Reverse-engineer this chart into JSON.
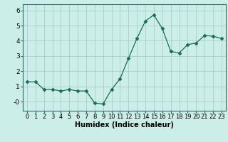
{
  "x": [
    0,
    1,
    2,
    3,
    4,
    5,
    6,
    7,
    8,
    9,
    10,
    11,
    12,
    13,
    14,
    15,
    16,
    17,
    18,
    19,
    20,
    21,
    22,
    23
  ],
  "y": [
    1.3,
    1.3,
    0.8,
    0.8,
    0.7,
    0.8,
    0.7,
    0.7,
    -0.1,
    -0.15,
    0.8,
    1.5,
    2.85,
    4.15,
    5.3,
    5.7,
    4.8,
    3.3,
    3.2,
    3.75,
    3.85,
    4.35,
    4.3,
    4.15
  ],
  "line_color": "#1a6b5a",
  "marker": "D",
  "marker_size": 2.5,
  "bg_color": "#cceee8",
  "grid_color": "#aacccc",
  "xlabel": "Humidex (Indice chaleur)",
  "xlim": [
    -0.5,
    23.5
  ],
  "ylim": [
    -0.6,
    6.4
  ],
  "yticks": [
    0,
    1,
    2,
    3,
    4,
    5,
    6
  ],
  "ytick_labels": [
    "-0",
    "1",
    "2",
    "3",
    "4",
    "5",
    "6"
  ],
  "xtick_labels": [
    "0",
    "1",
    "2",
    "3",
    "4",
    "5",
    "6",
    "7",
    "8",
    "9",
    "10",
    "11",
    "12",
    "13",
    "14",
    "15",
    "16",
    "17",
    "18",
    "19",
    "20",
    "21",
    "22",
    "23"
  ],
  "xlabel_fontsize": 7,
  "tick_fontsize": 6.5
}
